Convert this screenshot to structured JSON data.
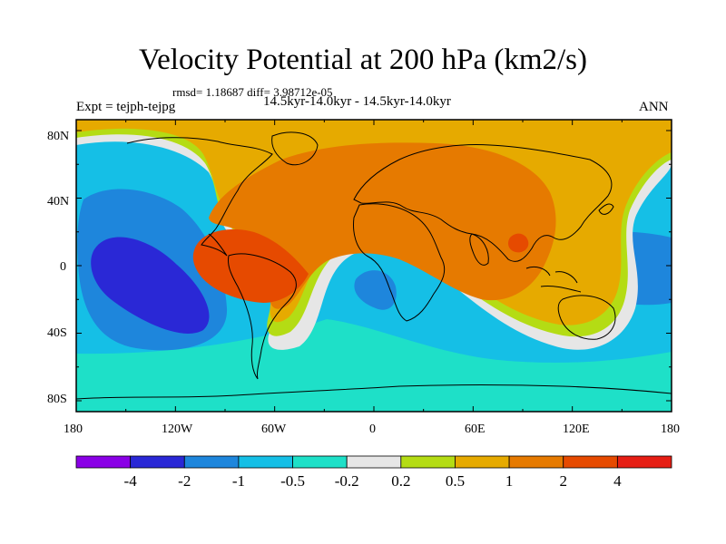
{
  "title": "Velocity Potential at 200 hPa (km2/s)",
  "stats_line": "rmsd= 1.18687 diff= 3.98712e-05",
  "experiment": "Expt = tejph-tejpg",
  "runs": "14.5kyr-14.0kyr - 14.5kyr-14.0kyr",
  "season": "ANN",
  "lat_labels": [
    "80N",
    "40N",
    "0",
    "40S",
    "80S"
  ],
  "lon_labels": [
    "180",
    "120W",
    "60W",
    "0",
    "60E",
    "120E",
    "180"
  ],
  "colorbar": {
    "labels": [
      "-4",
      "-2",
      "-1",
      "-0.5",
      "-0.2",
      "0.2",
      "0.5",
      "1",
      "2",
      "4"
    ],
    "colors": [
      "#8a00e6",
      "#2a28d6",
      "#1e86dc",
      "#15bfe6",
      "#1ee0c8",
      "#e6e6e6",
      "#b4dc14",
      "#e6aa00",
      "#e67a00",
      "#e64a00",
      "#e61e14"
    ]
  }
}
